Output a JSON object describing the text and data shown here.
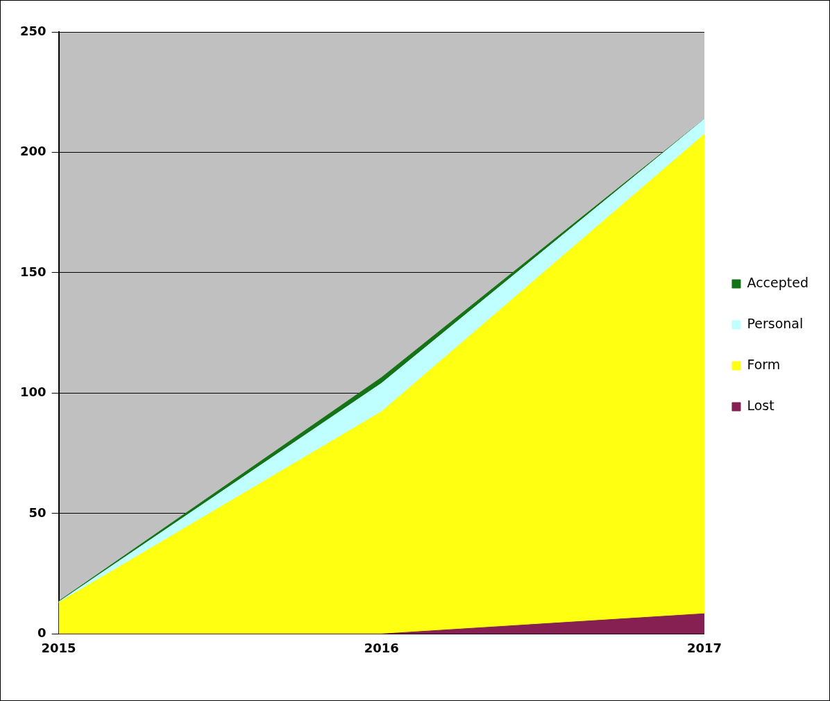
{
  "chart_data": {
    "type": "area",
    "stacked": true,
    "categories": [
      "2015",
      "2016",
      "2017"
    ],
    "series": [
      {
        "name": "Lost",
        "color": "#861f52",
        "values": [
          0,
          0,
          8.4
        ]
      },
      {
        "name": "Form",
        "color": "#ffff12",
        "values": [
          13,
          92.3,
          199.1
        ]
      },
      {
        "name": "Personal",
        "color": "#c0ffff",
        "values": [
          0.3,
          11.8,
          6.3
        ]
      },
      {
        "name": "Accepted",
        "color": "#147314",
        "values": [
          0.3,
          2.4,
          0
        ]
      }
    ],
    "ylim": [
      0,
      250
    ],
    "yticks": [
      0,
      50,
      100,
      150,
      200,
      250
    ],
    "grid": "y",
    "legend": "right"
  }
}
